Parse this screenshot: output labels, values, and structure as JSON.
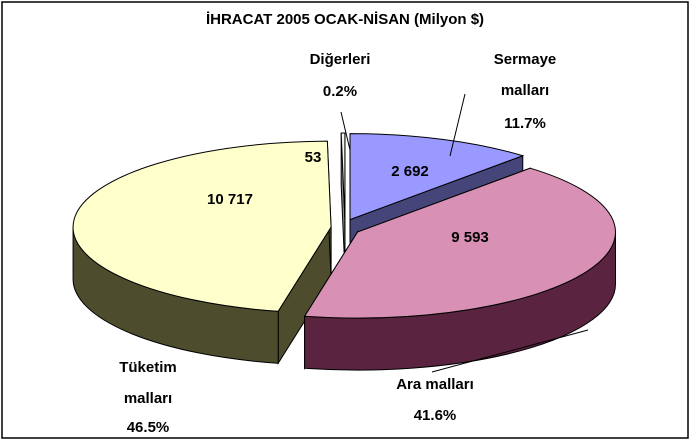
{
  "chart_data": {
    "type": "pie",
    "title": "İHRACAT 2005 OCAK-NİSAN (Milyon $)",
    "categories": [
      "Sermaye malları",
      "Ara malları",
      "Tüketim malları",
      "Diğerleri"
    ],
    "values": [
      2692,
      9593,
      10717,
      53
    ],
    "value_labels": [
      "2 692",
      "9 593",
      "10 717",
      "53"
    ],
    "percent_labels": [
      "11.7%",
      "41.6%",
      "46.5%",
      "0.2%"
    ],
    "colors": [
      "#9999ff",
      "#d890b4",
      "#ffffcc",
      "#f4f4f4"
    ],
    "side_colors": [
      "#45457a",
      "#5a2440",
      "#4d4d2e",
      "#8a8a8a"
    ]
  }
}
